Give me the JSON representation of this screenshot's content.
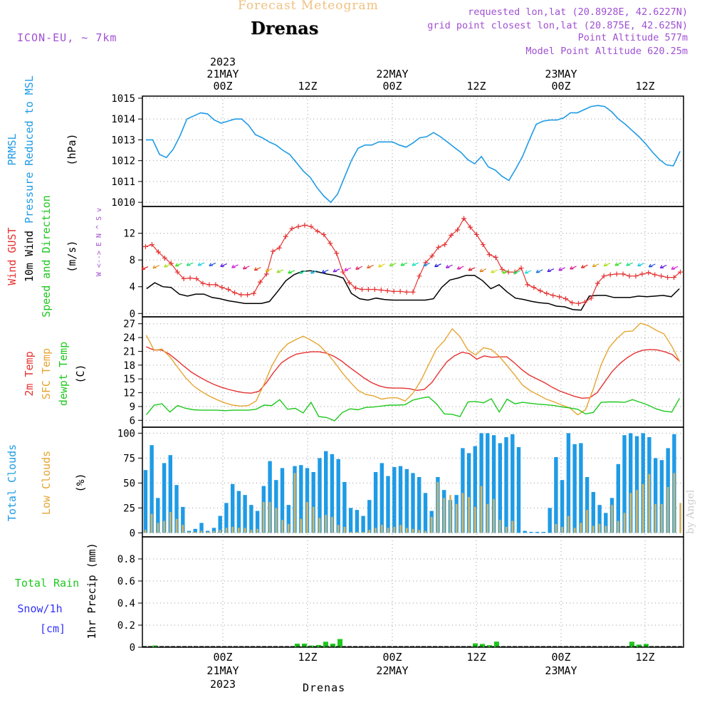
{
  "header": {
    "subtitle": "Forecast Meteogram",
    "title": "Drenas",
    "model": "ICON-EU, ~ 7km",
    "requested": "requested lon,lat (20.8928E, 42.6227N)",
    "grid": "grid point closest lon,lat (20.875E, 42.625N)",
    "point_alt": "Point Altitude 577m",
    "model_alt": "Model Point Altitude 620.25m",
    "footer": "Drenas",
    "credit": "by Angel"
  },
  "colors": {
    "pressure": "#1e9be6",
    "gust": "#e63232",
    "wind": "#000000",
    "temp2m": "#e63232",
    "sfc": "#e6a532",
    "dewpt": "#1ec81e",
    "total_clouds": "#1e9be6",
    "low_clouds": "#d2b464",
    "rain": "#1ec81e",
    "snow": "#3232ff",
    "meta": "#a050d2"
  },
  "chart_data": [
    {
      "type": "line",
      "panel": "pressure",
      "title": "",
      "ylabel": [
        "PRMSL",
        "Pressure Reduced to MSL",
        "(hPa)"
      ],
      "ylim": [
        1009.8,
        1015.1
      ],
      "yticks": [
        "1010",
        "1011",
        "1012",
        "1013",
        "1014",
        "1015"
      ],
      "x_top_ticks": [
        "2023",
        "21MAY",
        "00Z",
        "12Z",
        "22MAY",
        "00Z",
        "12Z",
        "23MAY",
        "00Z",
        "12Z"
      ],
      "series": [
        {
          "name": "PRMSL",
          "values": [
            1013.0,
            1013.0,
            1012.3,
            1012.15,
            1012.55,
            1013.2,
            1014.0,
            1014.15,
            1014.3,
            1014.25,
            1013.95,
            1013.8,
            1013.9,
            1014.0,
            1014.0,
            1013.7,
            1013.25,
            1013.1,
            1012.9,
            1012.75,
            1012.5,
            1012.3,
            1011.9,
            1011.5,
            1011.2,
            1010.7,
            1010.3,
            1010.0,
            1010.4,
            1011.2,
            1012.0,
            1012.6,
            1012.75,
            1012.75,
            1012.9,
            1012.9,
            1012.9,
            1012.75,
            1012.65,
            1012.85,
            1013.1,
            1013.15,
            1013.35,
            1013.15,
            1012.9,
            1012.65,
            1012.4,
            1012.05,
            1011.85,
            1012.2,
            1011.7,
            1011.55,
            1011.25,
            1011.05,
            1011.6,
            1012.2,
            1013.0,
            1013.75,
            1013.9,
            1013.95,
            1013.95,
            1014.05,
            1014.3,
            1014.3,
            1014.45,
            1014.6,
            1014.65,
            1014.6,
            1014.35,
            1014.0,
            1013.75,
            1013.45,
            1013.15,
            1012.8,
            1012.4,
            1012.05,
            1011.8,
            1011.75,
            1012.45
          ]
        }
      ]
    },
    {
      "type": "line",
      "panel": "wind",
      "title": "",
      "ylabel": [
        "Wind GUST",
        "10m Wind",
        "Speed and Direction",
        "(m/s)"
      ],
      "compass": "W <--> E  N ^ S v",
      "ylim": [
        -0.5,
        16
      ],
      "yticks": [
        "0",
        "4",
        "8",
        "12"
      ],
      "series": [
        {
          "name": "Wind GUST",
          "values": [
            10.0,
            10.3,
            9.2,
            8.3,
            7.5,
            6.2,
            5.2,
            5.3,
            5.2,
            4.5,
            4.3,
            4.3,
            3.9,
            3.6,
            3.1,
            2.8,
            2.8,
            3.0,
            4.7,
            5.9,
            9.3,
            9.8,
            11.5,
            12.7,
            13.0,
            13.2,
            13.0,
            12.3,
            11.8,
            10.5,
            9.0,
            6.2,
            4.6,
            3.8,
            3.6,
            3.6,
            3.6,
            3.5,
            3.4,
            3.3,
            3.3,
            3.2,
            3.2,
            5.6,
            7.6,
            8.6,
            9.9,
            10.3,
            11.7,
            12.5,
            14.2,
            12.9,
            11.8,
            10.3,
            8.8,
            8.4,
            6.6,
            6.2,
            6.2,
            6.8,
            4.3,
            3.9,
            3.4,
            3.0,
            2.7,
            2.5,
            2.2,
            1.6,
            1.5,
            1.7,
            2.3,
            4.5,
            5.6,
            5.8,
            5.9,
            5.9,
            5.6,
            5.6,
            5.9,
            6.1,
            5.8,
            5.6,
            5.4,
            5.4,
            6.2
          ]
        },
        {
          "name": "10m Wind",
          "values": [
            3.7,
            4.6,
            4.0,
            3.9,
            2.9,
            2.6,
            2.9,
            2.9,
            2.4,
            2.2,
            1.9,
            1.7,
            1.5,
            1.5,
            1.5,
            1.8,
            3.3,
            4.9,
            5.8,
            6.3,
            6.4,
            6.2,
            5.9,
            5.7,
            5.3,
            3.0,
            2.2,
            2.0,
            2.3,
            2.1,
            2.0,
            2.0,
            2.0,
            2.0,
            2.0,
            2.2,
            3.9,
            5.0,
            5.3,
            5.7,
            5.7,
            4.9,
            3.7,
            4.3,
            3.2,
            2.3,
            2.1,
            1.8,
            1.6,
            1.5,
            1.1,
            1.0,
            0.6,
            0.5,
            2.6,
            2.7,
            2.7,
            2.4,
            2.4,
            2.4,
            2.6,
            2.5,
            2.6,
            2.7,
            2.5,
            3.7
          ]
        }
      ]
    },
    {
      "type": "line",
      "panel": "temperature",
      "title": "",
      "ylabel": [
        "2m Temp",
        "SFC Temp",
        "dewpt Temp",
        "(C)"
      ],
      "ylim": [
        4.5,
        28.5
      ],
      "yticks": [
        "6",
        "9",
        "12",
        "15",
        "18",
        "21",
        "24",
        "27"
      ],
      "series": [
        {
          "name": "2m Temp",
          "values": [
            22.0,
            21.3,
            21.3,
            20.5,
            19.2,
            17.8,
            16.5,
            15.5,
            14.6,
            13.8,
            13.2,
            12.7,
            12.3,
            12.0,
            11.9,
            12.3,
            14.2,
            16.5,
            18.5,
            19.6,
            20.4,
            20.7,
            20.9,
            20.9,
            20.6,
            19.9,
            18.9,
            17.6,
            16.4,
            15.2,
            14.2,
            13.5,
            13.1,
            13.0,
            13.0,
            12.9,
            12.5,
            12.7,
            14.2,
            16.5,
            18.7,
            20.0,
            20.8,
            20.5,
            19.3,
            20.0,
            19.7,
            19.8,
            19.8,
            18.5,
            17.0,
            15.8,
            15.0,
            14.2,
            13.2,
            12.4,
            11.8,
            11.2,
            10.8,
            10.9,
            12.0,
            14.3,
            16.6,
            18.3,
            19.6,
            20.6,
            21.2,
            21.4,
            21.3,
            20.9,
            20.3,
            18.8
          ]
        },
        {
          "name": "SFC Temp",
          "values": [
            24.5,
            21.2,
            21.5,
            19.8,
            17.5,
            15.3,
            13.5,
            12.3,
            11.3,
            10.5,
            9.8,
            9.3,
            9.1,
            9.2,
            10.2,
            13.8,
            17.8,
            20.8,
            22.6,
            23.5,
            24.3,
            23.4,
            22.4,
            20.7,
            18.6,
            16.3,
            14.3,
            12.5,
            11.6,
            11.3,
            10.6,
            10.9,
            10.9,
            10.2,
            11.9,
            14.6,
            18.1,
            21.5,
            23.3,
            25.9,
            24.2,
            21.3,
            20.2,
            21.8,
            21.4,
            19.9,
            17.9,
            15.8,
            13.6,
            12.4,
            11.5,
            10.6,
            10.0,
            9.3,
            8.7,
            7.2,
            8.3,
            12.8,
            18.1,
            21.8,
            23.8,
            25.3,
            25.4,
            27.1,
            26.6,
            25.6,
            24.8,
            22.1,
            18.8
          ]
        },
        {
          "name": "dewpt Temp",
          "values": [
            7.2,
            9.3,
            9.6,
            7.8,
            9.2,
            8.6,
            8.3,
            8.2,
            8.2,
            8.2,
            8.1,
            8.2,
            8.2,
            8.2,
            8.4,
            9.3,
            9.2,
            10.5,
            8.4,
            8.6,
            7.6,
            9.9,
            6.8,
            6.6,
            5.9,
            7.7,
            8.5,
            8.3,
            8.8,
            8.9,
            9.1,
            9.3,
            9.3,
            9.4,
            10.4,
            10.8,
            11.1,
            9.6,
            7.4,
            7.3,
            6.8,
            10.0,
            10.1,
            9.8,
            10.7,
            7.8,
            10.6,
            9.6,
            9.9,
            9.7,
            9.5,
            9.4,
            9.2,
            8.9,
            8.7,
            8.4,
            7.4,
            7.7,
            9.9,
            10.0,
            10.0,
            9.9,
            10.5,
            9.9,
            9.3,
            8.5,
            8.0,
            7.8,
            10.8
          ]
        }
      ]
    },
    {
      "type": "bar",
      "panel": "clouds",
      "title": "",
      "ylabel": [
        "Total Clouds",
        "Low Clouds",
        "(%)"
      ],
      "ylim": [
        -4,
        106
      ],
      "yticks": [
        "0",
        "25",
        "50",
        "75",
        "100"
      ],
      "series": [
        {
          "name": "Total Clouds",
          "values": [
            63,
            88,
            35,
            70,
            78,
            48,
            26,
            2,
            4,
            10,
            2,
            5,
            17,
            30,
            49,
            42,
            38,
            28,
            22,
            47,
            72,
            53,
            65,
            28,
            67,
            68,
            65,
            61,
            75,
            82,
            79,
            74,
            51,
            25,
            23,
            17,
            33,
            61,
            70,
            57,
            66,
            67,
            64,
            60,
            56,
            40,
            22,
            56,
            43,
            33,
            38,
            85,
            80,
            87,
            100,
            100,
            98,
            90,
            96,
            99,
            86,
            2,
            1,
            1,
            1,
            25,
            76,
            53,
            100,
            89,
            90,
            56,
            41,
            28,
            20,
            35,
            69,
            98,
            100,
            97,
            100,
            96,
            75,
            73,
            85,
            99
          ]
        },
        {
          "name": "Low Clouds",
          "values": [
            3,
            19,
            10,
            12,
            21,
            14,
            8,
            1,
            1,
            2,
            1,
            2,
            3,
            5,
            6,
            5,
            5,
            3,
            4,
            31,
            31,
            25,
            13,
            9,
            60,
            14,
            31,
            26,
            15,
            18,
            16,
            8,
            6,
            1,
            1,
            1,
            3,
            5,
            8,
            5,
            6,
            8,
            5,
            4,
            3,
            2,
            16,
            51,
            35,
            38,
            29,
            40,
            36,
            26,
            47,
            29,
            34,
            13,
            6,
            12,
            0,
            0,
            0,
            0,
            0,
            0,
            9,
            6,
            17,
            5,
            10,
            23,
            7,
            9,
            7,
            28,
            12,
            20,
            40,
            43,
            49,
            59,
            29,
            29,
            46,
            60,
            30
          ]
        }
      ]
    },
    {
      "type": "bar",
      "panel": "precip",
      "title": "",
      "ylabel": [
        "1hr Precip (mm)"
      ],
      "legend": [
        "Total Rain",
        "Snow/1h",
        "[cm]"
      ],
      "ylim": [
        0,
        1.0
      ],
      "yticks": [
        "0",
        "0.2",
        "0.4",
        "0.6",
        "0.8"
      ],
      "x_bottom_ticks": [
        "00Z",
        "21MAY",
        "2023",
        "12Z",
        "00Z",
        "22MAY",
        "12Z",
        "00Z",
        "23MAY",
        "12Z"
      ],
      "series": [
        {
          "name": "Total Rain",
          "values": [
            0.015,
            0.032,
            0.032,
            0.015,
            0.02,
            0.05,
            0.032,
            0.074,
            0.035,
            0.03,
            0.018,
            0.051,
            0.05,
            0.024,
            0.03
          ]
        }
      ]
    }
  ]
}
